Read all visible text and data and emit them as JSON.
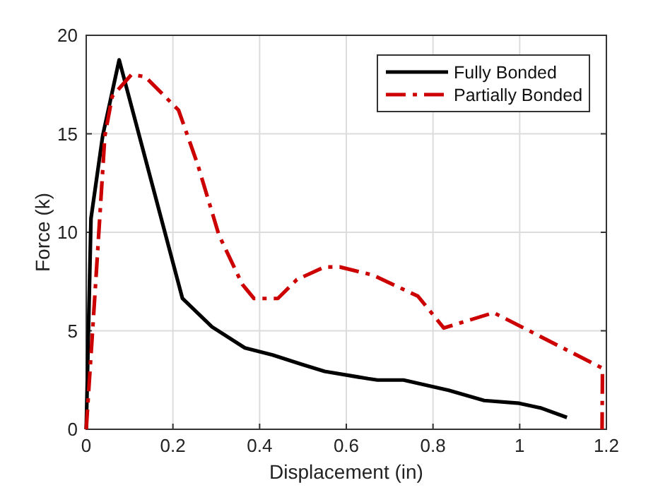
{
  "chart_data": {
    "type": "line",
    "xlabel": "Displacement (in)",
    "ylabel": "Force (k)",
    "xlim": [
      0,
      1.2
    ],
    "xticks": [
      0,
      0.2,
      0.4,
      0.6,
      0.8,
      1,
      1.2
    ],
    "ylim": [
      0,
      20
    ],
    "yticks": [
      0,
      5,
      10,
      15,
      20
    ],
    "grid": true,
    "legend": "top right",
    "series": [
      {
        "name": "Fully Bonded",
        "color": "#000000",
        "line_style": "solid",
        "x": [
          0,
          0.011,
          0.038,
          0.076,
          0.222,
          0.29,
          0.366,
          0.43,
          0.497,
          0.55,
          0.65,
          0.672,
          0.732,
          0.836,
          0.918,
          0.999,
          1.049,
          1.109
        ],
        "values": [
          0,
          10.7,
          14.9,
          18.75,
          6.64,
          5.2,
          4.13,
          3.77,
          3.3,
          2.94,
          2.57,
          2.5,
          2.5,
          1.98,
          1.46,
          1.32,
          1.08,
          0.6
        ]
      },
      {
        "name": "Partially Bonded",
        "color": "#cc0000",
        "line_style": "dashed",
        "x": [
          0,
          0.022,
          0.043,
          0.06,
          0.104,
          0.136,
          0.213,
          0.257,
          0.306,
          0.36,
          0.387,
          0.442,
          0.486,
          0.55,
          0.585,
          0.661,
          0.765,
          0.825,
          0.94,
          1.191,
          1.19
        ],
        "values": [
          0,
          7.5,
          14.9,
          16.9,
          18,
          17.9,
          16.2,
          13.45,
          9.87,
          7.36,
          6.64,
          6.64,
          7.6,
          8.24,
          8.24,
          7.83,
          6.76,
          5.14,
          5.92,
          3.1,
          0
        ]
      }
    ]
  }
}
